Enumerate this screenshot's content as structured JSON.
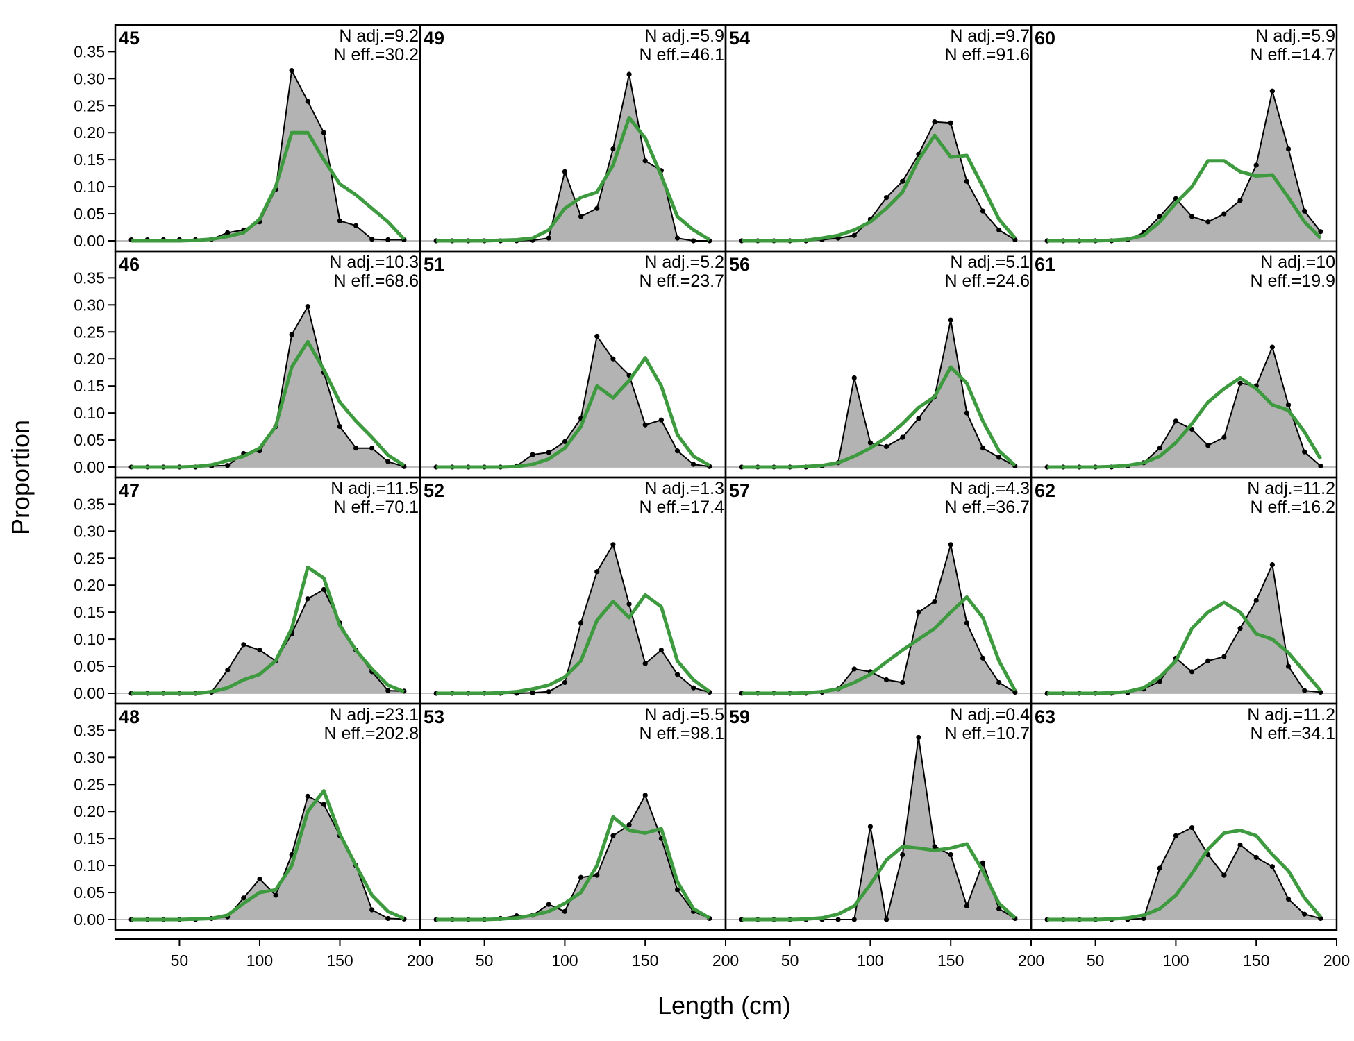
{
  "figure": {
    "xlabel": "Length (cm)",
    "ylabel": "Proportion",
    "x_ticks": [
      50,
      100,
      150,
      200
    ],
    "y_ticks": [
      "0.00",
      "0.05",
      "0.10",
      "0.15",
      "0.20",
      "0.25",
      "0.30",
      "0.35"
    ],
    "colors": {
      "observed_fill": "#b3b3b3",
      "observed_line": "#000000",
      "expected_line": "#3e9a3e",
      "zero_line": "#bdbdbd",
      "frame": "#000000"
    }
  },
  "chart_data": {
    "type": "area",
    "layout": "4x4 small multiples, filled column-wise",
    "xlim": [
      10,
      200
    ],
    "ylim": [
      0,
      0.38
    ],
    "x": [
      20,
      30,
      40,
      50,
      60,
      70,
      80,
      90,
      100,
      110,
      120,
      130,
      140,
      150,
      160,
      170,
      180,
      190
    ],
    "grid": false,
    "panels": [
      {
        "id": "45",
        "n_adj": "N adj.=9.2",
        "n_eff": "N eff.=30.2",
        "observed": [
          0.002,
          0.002,
          0.002,
          0.002,
          0.002,
          0.003,
          0.015,
          0.02,
          0.035,
          0.095,
          0.315,
          0.258,
          0.2,
          0.037,
          0.028,
          0.003,
          0.002,
          0.002
        ],
        "expected": [
          0.0,
          0.0,
          0.0,
          0.0,
          0.001,
          0.003,
          0.008,
          0.015,
          0.04,
          0.1,
          0.2,
          0.2,
          0.15,
          0.105,
          0.085,
          0.06,
          0.035,
          0.003
        ]
      },
      {
        "id": "46",
        "n_adj": "N adj.=10.3",
        "n_eff": "N eff.=68.6",
        "observed": [
          0.0,
          0.0,
          0.0,
          0.0,
          0.0,
          0.002,
          0.003,
          0.025,
          0.03,
          0.075,
          0.245,
          0.297,
          0.175,
          0.075,
          0.035,
          0.035,
          0.01,
          0.001
        ],
        "expected": [
          0.0,
          0.0,
          0.0,
          0.0,
          0.001,
          0.004,
          0.012,
          0.02,
          0.035,
          0.075,
          0.185,
          0.232,
          0.18,
          0.12,
          0.085,
          0.055,
          0.022,
          0.003
        ]
      },
      {
        "id": "47",
        "n_adj": "N adj.=11.5",
        "n_eff": "N eff.=70.1",
        "observed": [
          0.0,
          0.0,
          0.0,
          0.0,
          0.0,
          0.002,
          0.043,
          0.09,
          0.08,
          0.06,
          0.11,
          0.175,
          0.192,
          0.13,
          0.08,
          0.04,
          0.005,
          0.004
        ],
        "expected": [
          0.0,
          0.0,
          0.0,
          0.0,
          0.0,
          0.003,
          0.01,
          0.025,
          0.035,
          0.06,
          0.12,
          0.233,
          0.213,
          0.125,
          0.08,
          0.045,
          0.015,
          0.003
        ]
      },
      {
        "id": "48",
        "n_adj": "N adj.=23.1",
        "n_eff": "N eff.=202.8",
        "observed": [
          0.0,
          0.0,
          0.0,
          0.0,
          0.0,
          0.002,
          0.005,
          0.04,
          0.075,
          0.045,
          0.12,
          0.228,
          0.213,
          0.155,
          0.1,
          0.018,
          0.002,
          0.001
        ],
        "expected": [
          0.0,
          0.0,
          0.0,
          0.0,
          0.001,
          0.002,
          0.008,
          0.03,
          0.05,
          0.055,
          0.1,
          0.2,
          0.238,
          0.158,
          0.1,
          0.045,
          0.015,
          0.002
        ]
      },
      {
        "id": "49",
        "n_adj": "N adj.=5.9",
        "n_eff": "N eff.=46.1",
        "observed": [
          0.0,
          0.0,
          0.0,
          0.0,
          0.0,
          0.0,
          0.001,
          0.005,
          0.128,
          0.045,
          0.06,
          0.17,
          0.308,
          0.148,
          0.13,
          0.005,
          0.0,
          0.0
        ],
        "expected": [
          0.0,
          0.0,
          0.0,
          0.0,
          0.001,
          0.002,
          0.005,
          0.02,
          0.06,
          0.08,
          0.09,
          0.14,
          0.228,
          0.19,
          0.12,
          0.045,
          0.02,
          0.002
        ]
      },
      {
        "id": "51",
        "n_adj": "N adj.=5.2",
        "n_eff": "N eff.=23.7",
        "observed": [
          0.0,
          0.0,
          0.0,
          0.0,
          0.0,
          0.002,
          0.023,
          0.027,
          0.047,
          0.09,
          0.242,
          0.2,
          0.17,
          0.078,
          0.087,
          0.03,
          0.005,
          0.001
        ],
        "expected": [
          0.0,
          0.0,
          0.0,
          0.0,
          0.0,
          0.001,
          0.005,
          0.015,
          0.035,
          0.075,
          0.15,
          0.128,
          0.16,
          0.202,
          0.15,
          0.06,
          0.02,
          0.003
        ]
      },
      {
        "id": "52",
        "n_adj": "N adj.=1.3",
        "n_eff": "N eff.=17.4",
        "observed": [
          0.0,
          0.0,
          0.0,
          0.0,
          0.0,
          0.0,
          0.001,
          0.003,
          0.02,
          0.13,
          0.225,
          0.275,
          0.165,
          0.055,
          0.08,
          0.035,
          0.01,
          0.002
        ],
        "expected": [
          0.0,
          0.0,
          0.0,
          0.0,
          0.001,
          0.003,
          0.008,
          0.015,
          0.03,
          0.06,
          0.135,
          0.17,
          0.14,
          0.182,
          0.16,
          0.06,
          0.025,
          0.003
        ]
      },
      {
        "id": "53",
        "n_adj": "N adj.=5.5",
        "n_eff": "N eff.=98.1",
        "observed": [
          0.0,
          0.0,
          0.0,
          0.0,
          0.002,
          0.007,
          0.008,
          0.028,
          0.015,
          0.078,
          0.082,
          0.155,
          0.175,
          0.23,
          0.15,
          0.055,
          0.015,
          0.002
        ],
        "expected": [
          0.0,
          0.0,
          0.0,
          0.0,
          0.001,
          0.003,
          0.008,
          0.015,
          0.03,
          0.05,
          0.1,
          0.19,
          0.165,
          0.16,
          0.168,
          0.07,
          0.02,
          0.003
        ]
      },
      {
        "id": "54",
        "n_adj": "N adj.=9.7",
        "n_eff": "N eff.=91.6",
        "observed": [
          0.0,
          0.0,
          0.0,
          0.0,
          0.0,
          0.002,
          0.005,
          0.01,
          0.04,
          0.08,
          0.11,
          0.16,
          0.22,
          0.218,
          0.11,
          0.055,
          0.02,
          0.002
        ],
        "expected": [
          0.0,
          0.0,
          0.0,
          0.0,
          0.001,
          0.005,
          0.01,
          0.02,
          0.035,
          0.06,
          0.09,
          0.15,
          0.195,
          0.155,
          0.158,
          0.1,
          0.04,
          0.005
        ]
      },
      {
        "id": "56",
        "n_adj": "N adj.=5.1",
        "n_eff": "N eff.=24.6",
        "observed": [
          0.0,
          0.0,
          0.0,
          0.0,
          0.0,
          0.002,
          0.008,
          0.165,
          0.045,
          0.038,
          0.055,
          0.09,
          0.13,
          0.272,
          0.1,
          0.035,
          0.018,
          0.002
        ],
        "expected": [
          0.0,
          0.0,
          0.0,
          0.0,
          0.001,
          0.003,
          0.008,
          0.02,
          0.035,
          0.055,
          0.08,
          0.11,
          0.13,
          0.185,
          0.155,
          0.085,
          0.03,
          0.003
        ]
      },
      {
        "id": "57",
        "n_adj": "N adj.=4.3",
        "n_eff": "N eff.=36.7",
        "observed": [
          0.0,
          0.0,
          0.0,
          0.0,
          0.0,
          0.002,
          0.008,
          0.045,
          0.04,
          0.025,
          0.02,
          0.15,
          0.17,
          0.275,
          0.13,
          0.065,
          0.02,
          0.002
        ],
        "expected": [
          0.0,
          0.0,
          0.0,
          0.0,
          0.001,
          0.003,
          0.008,
          0.02,
          0.035,
          0.058,
          0.08,
          0.1,
          0.12,
          0.15,
          0.178,
          0.14,
          0.06,
          0.005
        ]
      },
      {
        "id": "59",
        "n_adj": "N adj.=0.4",
        "n_eff": "N eff.=10.7",
        "observed": [
          0.0,
          0.0,
          0.0,
          0.0,
          0.0,
          0.0,
          0.0,
          0.0,
          0.172,
          0.0,
          0.12,
          0.337,
          0.135,
          0.12,
          0.025,
          0.105,
          0.02,
          0.002
        ],
        "expected": [
          0.0,
          0.0,
          0.0,
          0.0,
          0.001,
          0.003,
          0.01,
          0.025,
          0.065,
          0.11,
          0.135,
          0.132,
          0.128,
          0.132,
          0.14,
          0.09,
          0.03,
          0.003
        ]
      },
      {
        "id": "60",
        "n_adj": "N adj.=5.9",
        "n_eff": "N eff.=14.7",
        "observed": [
          0.0,
          0.0,
          0.0,
          0.0,
          0.0,
          0.002,
          0.015,
          0.045,
          0.078,
          0.045,
          0.035,
          0.05,
          0.075,
          0.14,
          0.277,
          0.17,
          0.055,
          0.017
        ],
        "expected": [
          0.0,
          0.0,
          0.0,
          0.0,
          0.001,
          0.003,
          0.01,
          0.035,
          0.07,
          0.1,
          0.148,
          0.148,
          0.128,
          0.12,
          0.122,
          0.08,
          0.035,
          0.005
        ]
      },
      {
        "id": "61",
        "n_adj": "N adj.=10",
        "n_eff": "N eff.=19.9",
        "observed": [
          0.0,
          0.0,
          0.0,
          0.0,
          0.0,
          0.002,
          0.008,
          0.035,
          0.085,
          0.07,
          0.04,
          0.055,
          0.155,
          0.15,
          0.222,
          0.115,
          0.028,
          0.002
        ],
        "expected": [
          0.0,
          0.0,
          0.0,
          0.0,
          0.001,
          0.003,
          0.008,
          0.02,
          0.045,
          0.08,
          0.12,
          0.145,
          0.165,
          0.145,
          0.115,
          0.105,
          0.065,
          0.015
        ]
      },
      {
        "id": "62",
        "n_adj": "N adj.=11.2",
        "n_eff": "N eff.=16.2",
        "observed": [
          0.0,
          0.0,
          0.0,
          0.0,
          0.0,
          0.001,
          0.008,
          0.022,
          0.065,
          0.04,
          0.06,
          0.068,
          0.12,
          0.172,
          0.238,
          0.05,
          0.005,
          0.002
        ],
        "expected": [
          0.0,
          0.0,
          0.0,
          0.0,
          0.001,
          0.003,
          0.01,
          0.03,
          0.06,
          0.12,
          0.15,
          0.168,
          0.15,
          0.11,
          0.1,
          0.075,
          0.04,
          0.005
        ]
      },
      {
        "id": "63",
        "n_adj": "N adj.=11.2",
        "n_eff": "N eff.=34.1",
        "observed": [
          0.0,
          0.0,
          0.0,
          0.0,
          0.0,
          0.0,
          0.002,
          0.095,
          0.155,
          0.17,
          0.12,
          0.082,
          0.138,
          0.115,
          0.098,
          0.038,
          0.01,
          0.002
        ],
        "expected": [
          0.0,
          0.0,
          0.0,
          0.0,
          0.001,
          0.003,
          0.008,
          0.02,
          0.045,
          0.085,
          0.13,
          0.16,
          0.165,
          0.155,
          0.12,
          0.09,
          0.04,
          0.005
        ]
      }
    ]
  }
}
